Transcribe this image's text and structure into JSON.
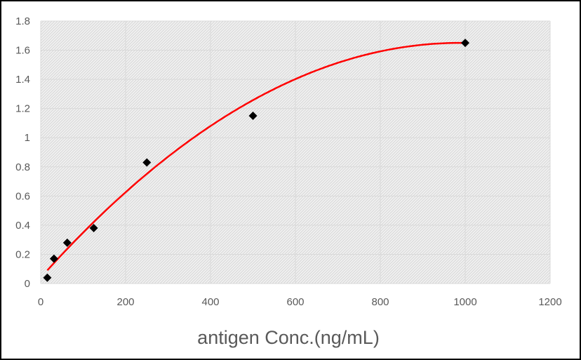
{
  "chart_data": {
    "type": "scatter",
    "title": "",
    "xlabel": "antigen Conc.(ng/mL)",
    "ylabel": "",
    "xlim": [
      0,
      1200
    ],
    "ylim": [
      0,
      1.8
    ],
    "x_ticks": [
      0,
      200,
      400,
      600,
      800,
      1000,
      1200
    ],
    "y_ticks": [
      0,
      0.2,
      0.4,
      0.6,
      0.8,
      1,
      1.2,
      1.4,
      1.6,
      1.8
    ],
    "x_tick_labels": [
      "0",
      "200",
      "400",
      "600",
      "800",
      "1000",
      "1200"
    ],
    "y_tick_labels": [
      "0",
      "0.2",
      "0.4",
      "0.6",
      "0.8",
      "1",
      "1.2",
      "1.4",
      "1.6",
      "1.8"
    ],
    "grid": true,
    "legend": "none",
    "series": [
      {
        "marker": "diamond",
        "color": "#000000",
        "x": [
          15.6,
          31.25,
          62.5,
          125,
          250,
          500,
          1000
        ],
        "y": [
          0.04,
          0.17,
          0.28,
          0.38,
          0.83,
          1.15,
          1.65
        ]
      }
    ],
    "trendline": {
      "type": "polynomial",
      "order": 2,
      "color": "#ff0000",
      "x_range": [
        15.6,
        1000
      ],
      "coefficients": [
        -1.65e-06,
        0.00326,
        0.04
      ]
    },
    "plot_background": "hatched light gray"
  }
}
